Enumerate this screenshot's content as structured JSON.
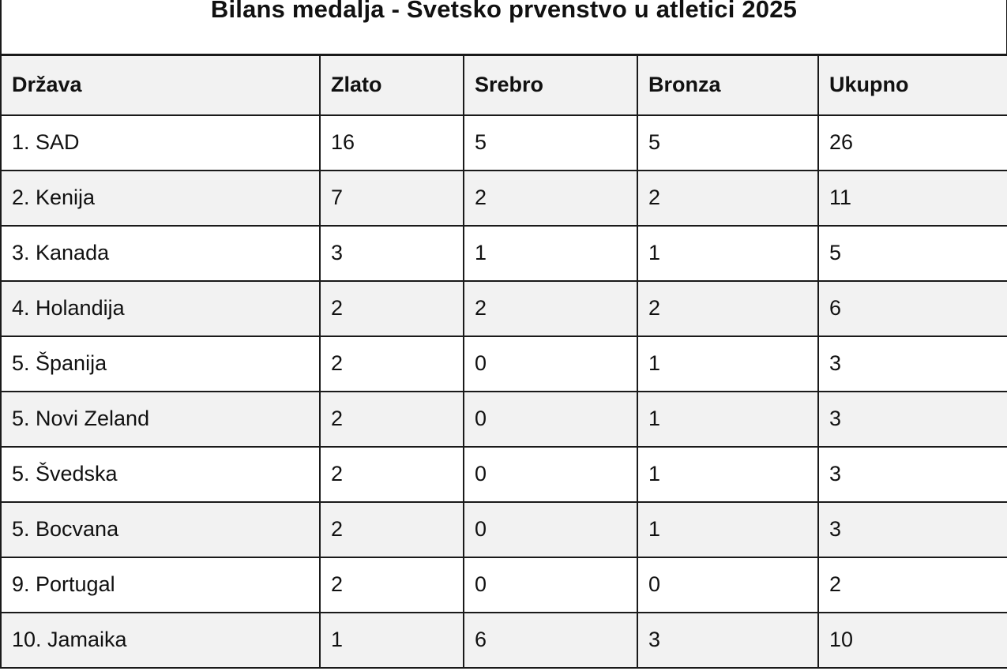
{
  "title": "Bilans medalja - Svetsko prvenstvo u atletici 2025",
  "table": {
    "headers": [
      "Država",
      "Zlato",
      "Srebro",
      "Bronza",
      "Ukupno"
    ],
    "rows": [
      [
        "1. SAD",
        "16",
        "5",
        "5",
        "26"
      ],
      [
        "2. Kenija",
        "7",
        "2",
        "2",
        "11"
      ],
      [
        "3. Kanada",
        "3",
        "1",
        "1",
        "5"
      ],
      [
        "4. Holandija",
        "2",
        "2",
        "2",
        "6"
      ],
      [
        "5. Španija",
        "2",
        "0",
        "1",
        "3"
      ],
      [
        "5. Novi Zeland",
        "2",
        "0",
        "1",
        "3"
      ],
      [
        "5. Švedska",
        "2",
        "0",
        "1",
        "3"
      ],
      [
        "5. Bocvana",
        "2",
        "0",
        "1",
        "3"
      ],
      [
        "9. Portugal",
        "2",
        "0",
        "0",
        "2"
      ],
      [
        "10. Jamaika",
        "1",
        "6",
        "3",
        "10"
      ]
    ]
  }
}
